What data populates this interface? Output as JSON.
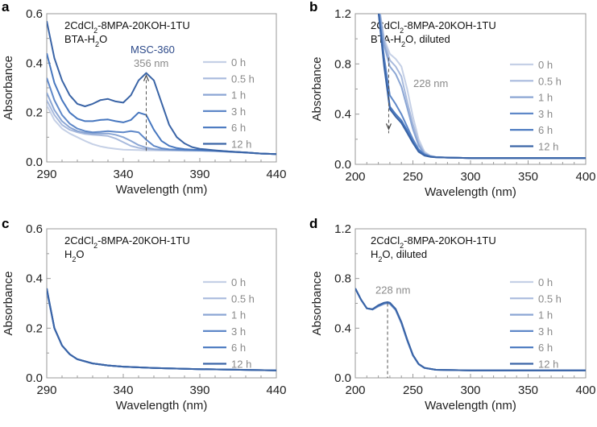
{
  "colors": {
    "series": [
      "#c5d0e6",
      "#a8badd",
      "#8ba6d4",
      "#5f88c8",
      "#4777bf",
      "#3a64a6"
    ],
    "accent": "#2d4a8a",
    "note": "#8a8a8a",
    "axis": "#999999"
  },
  "chart_data": [
    {
      "panel": "a",
      "type": "line",
      "text_line1": [
        "2CdCl",
        "2",
        "-8MPA-20KOH-1TU"
      ],
      "text_line2": [
        "BTA-H",
        "2",
        "O"
      ],
      "xlabel": "Wavelength (nm)",
      "ylabel": "Absorbance",
      "xlim": [
        290,
        440
      ],
      "ylim": [
        0,
        0.6
      ],
      "xticks": [
        "290",
        "340",
        "390",
        "440"
      ],
      "yticks": [
        "0.0",
        "0.2",
        "0.4",
        "0.6"
      ],
      "x": [
        290,
        295,
        300,
        305,
        310,
        315,
        320,
        325,
        330,
        335,
        340,
        345,
        350,
        355,
        360,
        365,
        370,
        375,
        380,
        385,
        390,
        400,
        410,
        420,
        430,
        440
      ],
      "series": [
        {
          "name": "0 h",
          "values": [
            0.23,
            0.17,
            0.135,
            0.115,
            0.1,
            0.085,
            0.072,
            0.063,
            0.057,
            0.053,
            0.05,
            0.049,
            0.048,
            0.047,
            0.047,
            0.046,
            0.046,
            0.046,
            0.045,
            0.045,
            0.045,
            0.043,
            0.04,
            0.037,
            0.034,
            0.032
          ]
        },
        {
          "name": "0.5 h",
          "values": [
            0.25,
            0.19,
            0.15,
            0.13,
            0.12,
            0.113,
            0.11,
            0.108,
            0.105,
            0.095,
            0.08,
            0.065,
            0.057,
            0.052,
            0.05,
            0.049,
            0.048,
            0.047,
            0.047,
            0.046,
            0.046,
            0.044,
            0.041,
            0.038,
            0.034,
            0.032
          ]
        },
        {
          "name": "1 h",
          "values": [
            0.28,
            0.21,
            0.165,
            0.14,
            0.125,
            0.118,
            0.115,
            0.115,
            0.115,
            0.11,
            0.1,
            0.085,
            0.068,
            0.058,
            0.052,
            0.05,
            0.049,
            0.048,
            0.047,
            0.047,
            0.046,
            0.044,
            0.041,
            0.038,
            0.034,
            0.032
          ]
        },
        {
          "name": "3 h",
          "values": [
            0.34,
            0.25,
            0.19,
            0.155,
            0.135,
            0.125,
            0.12,
            0.122,
            0.125,
            0.122,
            0.12,
            0.125,
            0.12,
            0.09,
            0.065,
            0.055,
            0.051,
            0.05,
            0.049,
            0.048,
            0.047,
            0.045,
            0.041,
            0.038,
            0.034,
            0.032
          ]
        },
        {
          "name": "6 h",
          "values": [
            0.44,
            0.32,
            0.25,
            0.2,
            0.175,
            0.165,
            0.165,
            0.17,
            0.172,
            0.165,
            0.16,
            0.17,
            0.2,
            0.19,
            0.13,
            0.085,
            0.065,
            0.056,
            0.052,
            0.05,
            0.049,
            0.046,
            0.042,
            0.038,
            0.034,
            0.032
          ]
        },
        {
          "name": "12 h",
          "values": [
            0.57,
            0.42,
            0.33,
            0.27,
            0.235,
            0.225,
            0.235,
            0.25,
            0.255,
            0.245,
            0.24,
            0.27,
            0.33,
            0.36,
            0.33,
            0.24,
            0.15,
            0.1,
            0.075,
            0.06,
            0.053,
            0.047,
            0.042,
            0.038,
            0.034,
            0.032
          ]
        }
      ],
      "annotations": [
        {
          "label": "MSC-360",
          "style": "accent"
        },
        {
          "label": "356 nm",
          "style": "note",
          "x": 355,
          "arrow_from": 0.045,
          "arrow_to": 0.35
        }
      ]
    },
    {
      "panel": "b",
      "type": "line",
      "text_line1": [
        "2CdCl",
        "2",
        "-8MPA-20KOH-1TU"
      ],
      "text_line2": [
        "BTA-H",
        "2",
        "O, diluted"
      ],
      "xlabel": "Wavelength (nm)",
      "ylabel": "Absorbance",
      "xlim": [
        200,
        400
      ],
      "ylim": [
        0,
        1.2
      ],
      "xticks": [
        "200",
        "250",
        "300",
        "350",
        "400"
      ],
      "yticks": [
        "0.0",
        "0.4",
        "0.8",
        "1.2"
      ],
      "x": [
        218,
        220,
        225,
        230,
        235,
        240,
        245,
        250,
        255,
        260,
        265,
        270,
        280,
        290,
        300,
        350,
        400
      ],
      "series": [
        {
          "name": "0 h",
          "values": [
            1.4,
            1.3,
            1.0,
            0.88,
            0.84,
            0.78,
            0.6,
            0.38,
            0.2,
            0.1,
            0.07,
            0.06,
            0.055,
            0.052,
            0.05,
            0.05,
            0.05
          ]
        },
        {
          "name": "0.5 h",
          "values": [
            1.4,
            1.28,
            0.98,
            0.83,
            0.78,
            0.7,
            0.5,
            0.32,
            0.17,
            0.09,
            0.065,
            0.058,
            0.054,
            0.052,
            0.05,
            0.05,
            0.05
          ]
        },
        {
          "name": "1 h",
          "values": [
            1.4,
            1.27,
            0.95,
            0.78,
            0.72,
            0.62,
            0.45,
            0.28,
            0.15,
            0.085,
            0.064,
            0.058,
            0.054,
            0.052,
            0.05,
            0.05,
            0.05
          ]
        },
        {
          "name": "3 h",
          "values": [
            1.4,
            1.25,
            0.85,
            0.55,
            0.48,
            0.4,
            0.3,
            0.2,
            0.12,
            0.08,
            0.063,
            0.057,
            0.054,
            0.052,
            0.05,
            0.05,
            0.05
          ]
        },
        {
          "name": "6 h",
          "values": [
            1.4,
            1.23,
            0.8,
            0.46,
            0.4,
            0.35,
            0.27,
            0.18,
            0.11,
            0.075,
            0.062,
            0.057,
            0.054,
            0.052,
            0.05,
            0.05,
            0.05
          ]
        },
        {
          "name": "12 h",
          "values": [
            1.4,
            1.22,
            0.78,
            0.44,
            0.38,
            0.33,
            0.25,
            0.17,
            0.1,
            0.07,
            0.06,
            0.056,
            0.054,
            0.052,
            0.05,
            0.05,
            0.05
          ]
        }
      ],
      "annotations": [
        {
          "label": "228 nm",
          "style": "note",
          "x": 229,
          "arrow_from": 0.85,
          "arrow_to": 0.28
        }
      ]
    },
    {
      "panel": "c",
      "type": "line",
      "text_line1": [
        "2CdCl",
        "2",
        "-8MPA-20KOH-1TU"
      ],
      "text_line2": [
        "H",
        "2",
        "O"
      ],
      "xlabel": "Wavelength (nm)",
      "ylabel": "Absorbance",
      "xlim": [
        290,
        440
      ],
      "ylim": [
        0,
        0.6
      ],
      "xticks": [
        "290",
        "340",
        "390",
        "440"
      ],
      "yticks": [
        "0.0",
        "0.2",
        "0.4",
        "0.6"
      ],
      "x": [
        290,
        295,
        300,
        305,
        310,
        320,
        330,
        340,
        360,
        390,
        440
      ],
      "series": [
        {
          "name": "0 h",
          "values": [
            0.35,
            0.2,
            0.13,
            0.095,
            0.075,
            0.058,
            0.05,
            0.045,
            0.04,
            0.035,
            0.03
          ]
        },
        {
          "name": "0.5 h",
          "values": [
            0.35,
            0.2,
            0.13,
            0.095,
            0.075,
            0.058,
            0.05,
            0.045,
            0.04,
            0.035,
            0.03
          ]
        },
        {
          "name": "1 h",
          "values": [
            0.355,
            0.2,
            0.13,
            0.095,
            0.075,
            0.058,
            0.05,
            0.045,
            0.04,
            0.035,
            0.03
          ]
        },
        {
          "name": "3 h",
          "values": [
            0.355,
            0.2,
            0.13,
            0.095,
            0.075,
            0.058,
            0.05,
            0.045,
            0.04,
            0.035,
            0.03
          ]
        },
        {
          "name": "6 h",
          "values": [
            0.36,
            0.2,
            0.13,
            0.095,
            0.075,
            0.058,
            0.05,
            0.045,
            0.04,
            0.035,
            0.03
          ]
        },
        {
          "name": "12 h",
          "values": [
            0.36,
            0.2,
            0.13,
            0.095,
            0.075,
            0.058,
            0.05,
            0.045,
            0.04,
            0.035,
            0.03
          ]
        }
      ],
      "annotations": []
    },
    {
      "panel": "d",
      "type": "line",
      "text_line1": [
        "2CdCl",
        "2",
        "-8MPA-20KOH-1TU"
      ],
      "text_line2": [
        "H",
        "2",
        "O, diluted"
      ],
      "xlabel": "Wavelength (nm)",
      "ylabel": "Absorbance",
      "xlim": [
        200,
        400
      ],
      "ylim": [
        0,
        1.2
      ],
      "xticks": [
        "200",
        "250",
        "300",
        "350",
        "400"
      ],
      "yticks": [
        "0.0",
        "0.4",
        "0.8",
        "1.2"
      ],
      "x": [
        200,
        205,
        210,
        215,
        220,
        225,
        228,
        230,
        235,
        240,
        245,
        250,
        255,
        260,
        270,
        300,
        400
      ],
      "series": [
        {
          "name": "0 h",
          "values": [
            0.72,
            0.63,
            0.56,
            0.55,
            0.575,
            0.595,
            0.6,
            0.595,
            0.545,
            0.44,
            0.3,
            0.18,
            0.11,
            0.08,
            0.065,
            0.06,
            0.06
          ]
        },
        {
          "name": "0.5 h",
          "values": [
            0.72,
            0.63,
            0.56,
            0.55,
            0.575,
            0.595,
            0.6,
            0.595,
            0.545,
            0.44,
            0.3,
            0.18,
            0.11,
            0.08,
            0.065,
            0.06,
            0.06
          ]
        },
        {
          "name": "1 h",
          "values": [
            0.72,
            0.63,
            0.56,
            0.55,
            0.578,
            0.598,
            0.603,
            0.598,
            0.548,
            0.442,
            0.302,
            0.181,
            0.11,
            0.08,
            0.065,
            0.06,
            0.06
          ]
        },
        {
          "name": "3 h",
          "values": [
            0.72,
            0.63,
            0.56,
            0.55,
            0.58,
            0.6,
            0.605,
            0.6,
            0.55,
            0.445,
            0.305,
            0.182,
            0.11,
            0.08,
            0.065,
            0.06,
            0.06
          ]
        },
        {
          "name": "6 h",
          "values": [
            0.72,
            0.63,
            0.56,
            0.552,
            0.582,
            0.602,
            0.608,
            0.602,
            0.552,
            0.447,
            0.307,
            0.183,
            0.111,
            0.08,
            0.065,
            0.06,
            0.06
          ]
        },
        {
          "name": "12 h",
          "values": [
            0.72,
            0.63,
            0.56,
            0.553,
            0.585,
            0.605,
            0.61,
            0.605,
            0.555,
            0.45,
            0.31,
            0.185,
            0.112,
            0.081,
            0.065,
            0.06,
            0.06
          ]
        }
      ],
      "annotations": [
        {
          "label": "228 nm",
          "style": "note",
          "x": 228,
          "line_from": 0.6,
          "line_to": 0
        }
      ]
    }
  ]
}
